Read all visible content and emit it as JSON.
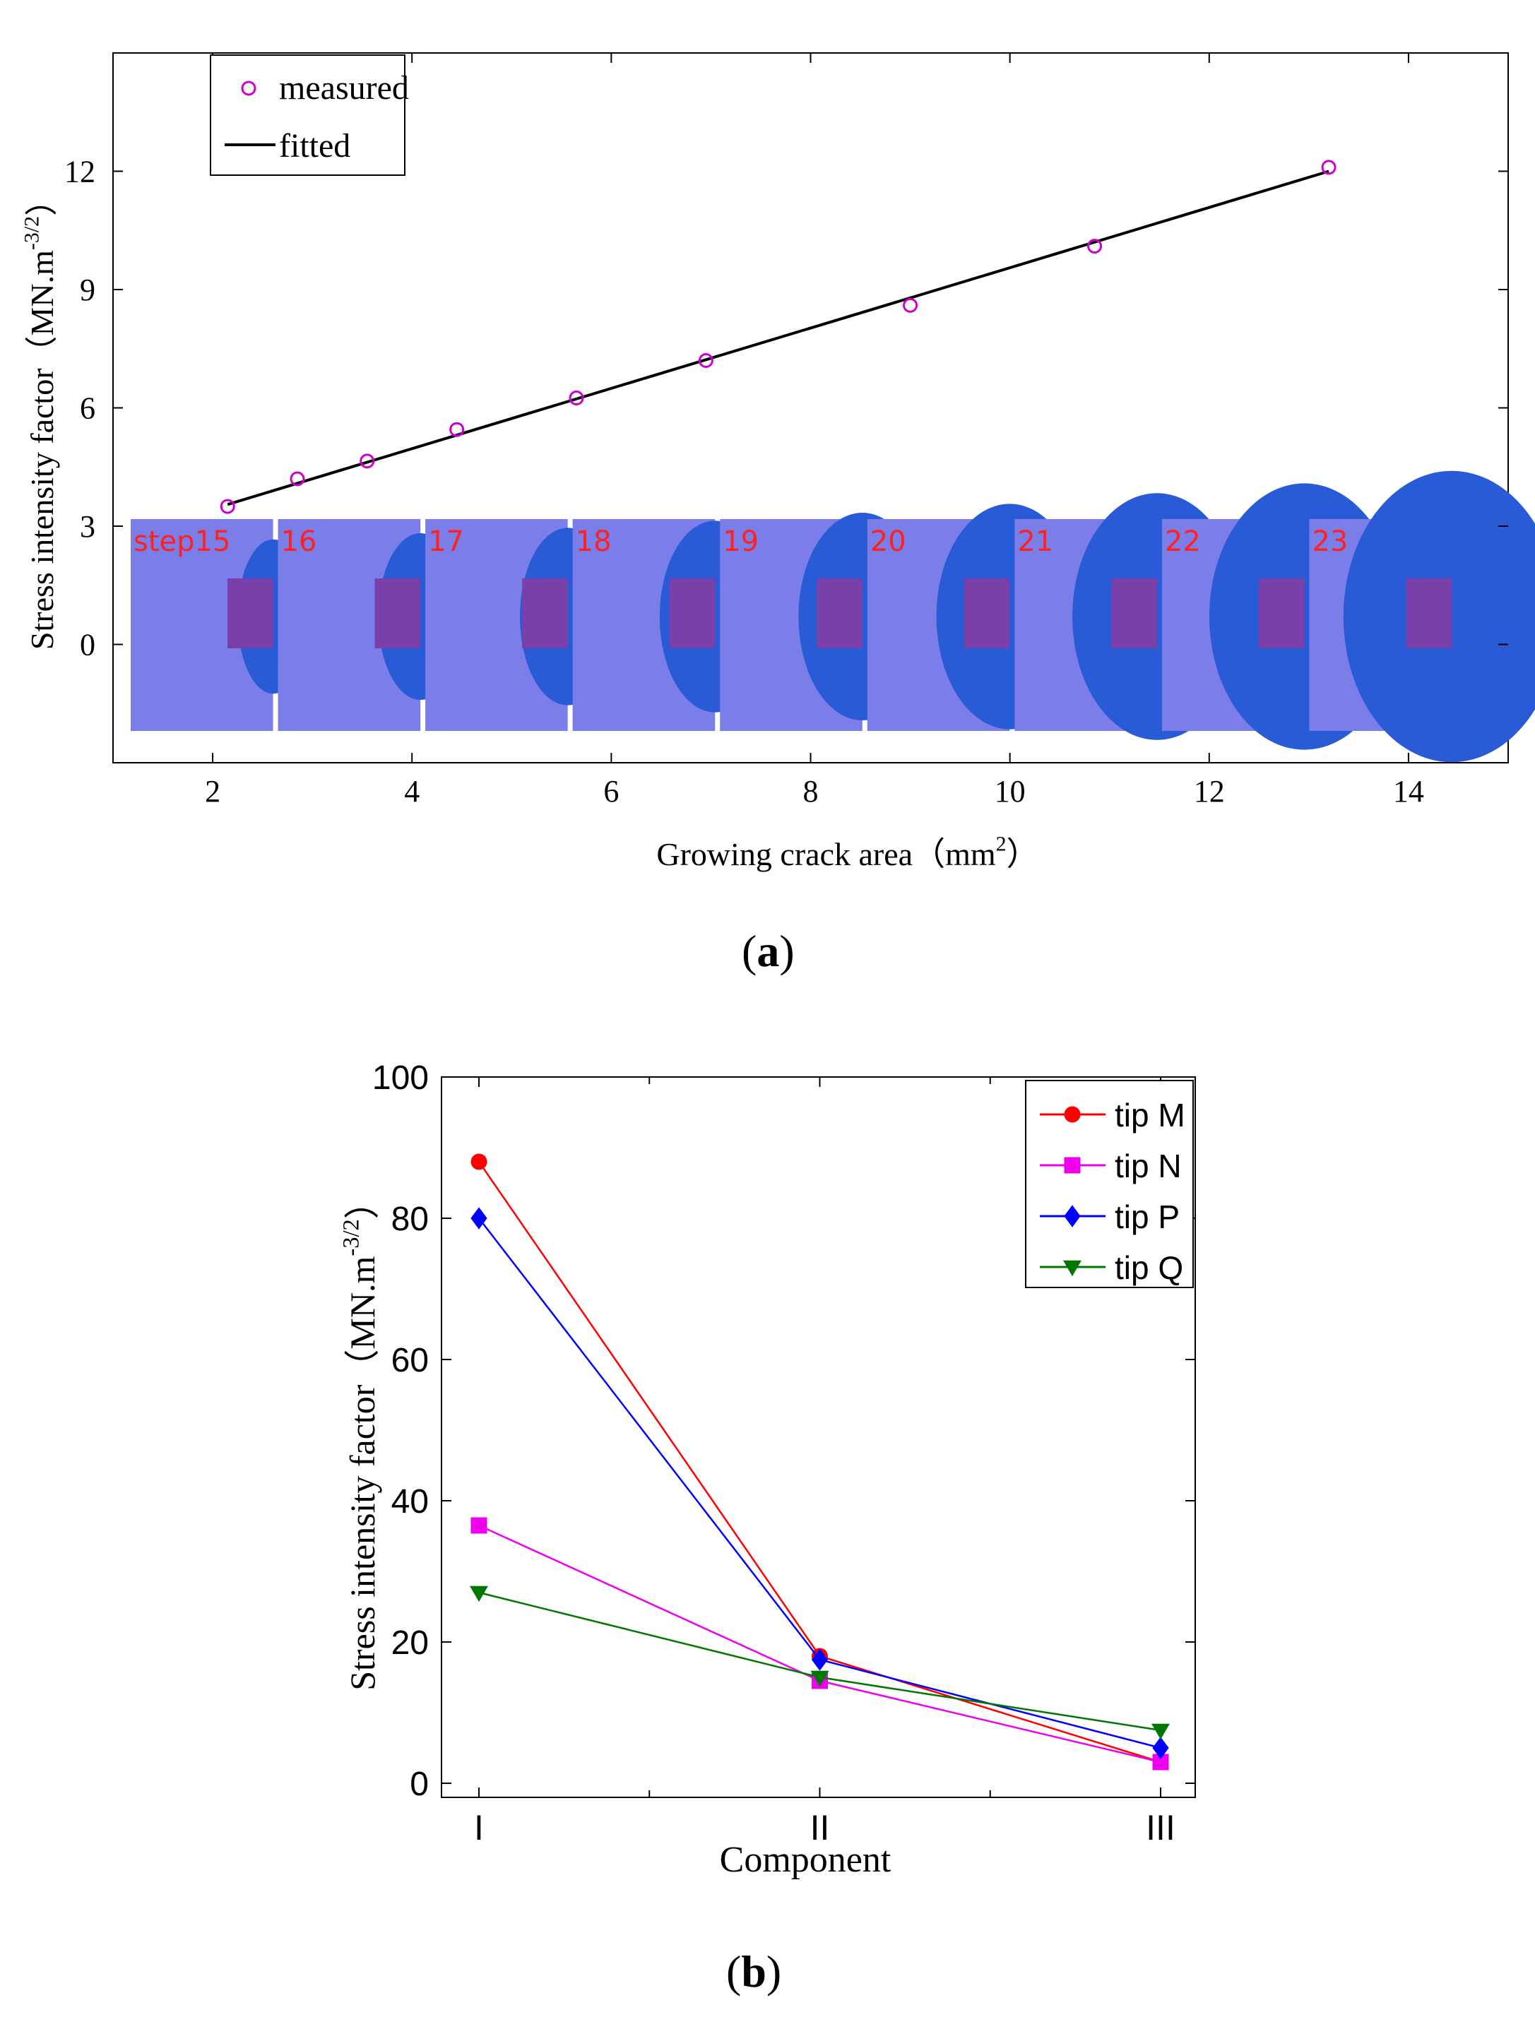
{
  "chart_data": [
    {
      "panel": "(a)",
      "panel_letter": "a",
      "type": "scatter",
      "xlabel": "Growing crack area",
      "xunit": "mm",
      "xunit_sup": "2",
      "ylabel": "Stress intensity factor",
      "yunit": "MN.m",
      "yunit_sup": "-3/2",
      "xlim": [
        1,
        15
      ],
      "ylim": [
        -3,
        15
      ],
      "xticks": [
        2,
        4,
        6,
        8,
        10,
        12,
        14
      ],
      "yticks": [
        0,
        3,
        6,
        9,
        12
      ],
      "legend": {
        "position": "top-left",
        "entries": [
          "measured",
          "fitted"
        ]
      },
      "series": [
        {
          "name": "measured",
          "marker": "circle",
          "color": "#cc00cc",
          "x": [
            2.15,
            2.85,
            3.55,
            4.45,
            5.65,
            6.95,
            9.0,
            10.85,
            13.2
          ],
          "y": [
            3.5,
            4.2,
            4.65,
            5.45,
            6.25,
            7.2,
            8.6,
            10.1,
            12.1
          ]
        },
        {
          "name": "fitted",
          "type": "line",
          "color": "#000000",
          "x": [
            2.15,
            13.2
          ],
          "y": [
            3.55,
            12.0
          ]
        }
      ],
      "inset_strip": {
        "labels": [
          "step15",
          "16",
          "17",
          "18",
          "19",
          "20",
          "21",
          "22",
          "23"
        ],
        "crack_growth": [
          0.2,
          0.27,
          0.33,
          0.41,
          0.5,
          0.6,
          0.72,
          0.83,
          0.97
        ],
        "colors": {
          "background": "#7b7ee8",
          "crack": "#2a5bd7",
          "ligament": "#7a3fa8",
          "label": "#ff2020"
        }
      }
    },
    {
      "panel": "(b)",
      "panel_letter": "b",
      "type": "line",
      "xlabel": "Component",
      "ylabel": "Stress intensity factor",
      "yunit": "MN.m",
      "yunit_sup": "-3/2",
      "categories": [
        "I",
        "II",
        "III"
      ],
      "ylim": [
        -2,
        100
      ],
      "yticks": [
        0,
        20,
        40,
        60,
        80,
        100
      ],
      "legend": {
        "position": "top-right"
      },
      "series": [
        {
          "name": "tip M",
          "marker": "circle",
          "color": "#ff0000",
          "values": [
            88,
            18,
            3
          ]
        },
        {
          "name": "tip N",
          "marker": "square",
          "color": "#ee00ee",
          "values": [
            36.5,
            14.5,
            3
          ]
        },
        {
          "name": "tip P",
          "marker": "diamond",
          "color": "#0000ff",
          "values": [
            80,
            17.5,
            5
          ]
        },
        {
          "name": "tip Q",
          "marker": "triangle-down",
          "color": "#007700",
          "values": [
            27,
            15,
            7.5
          ]
        }
      ]
    }
  ]
}
